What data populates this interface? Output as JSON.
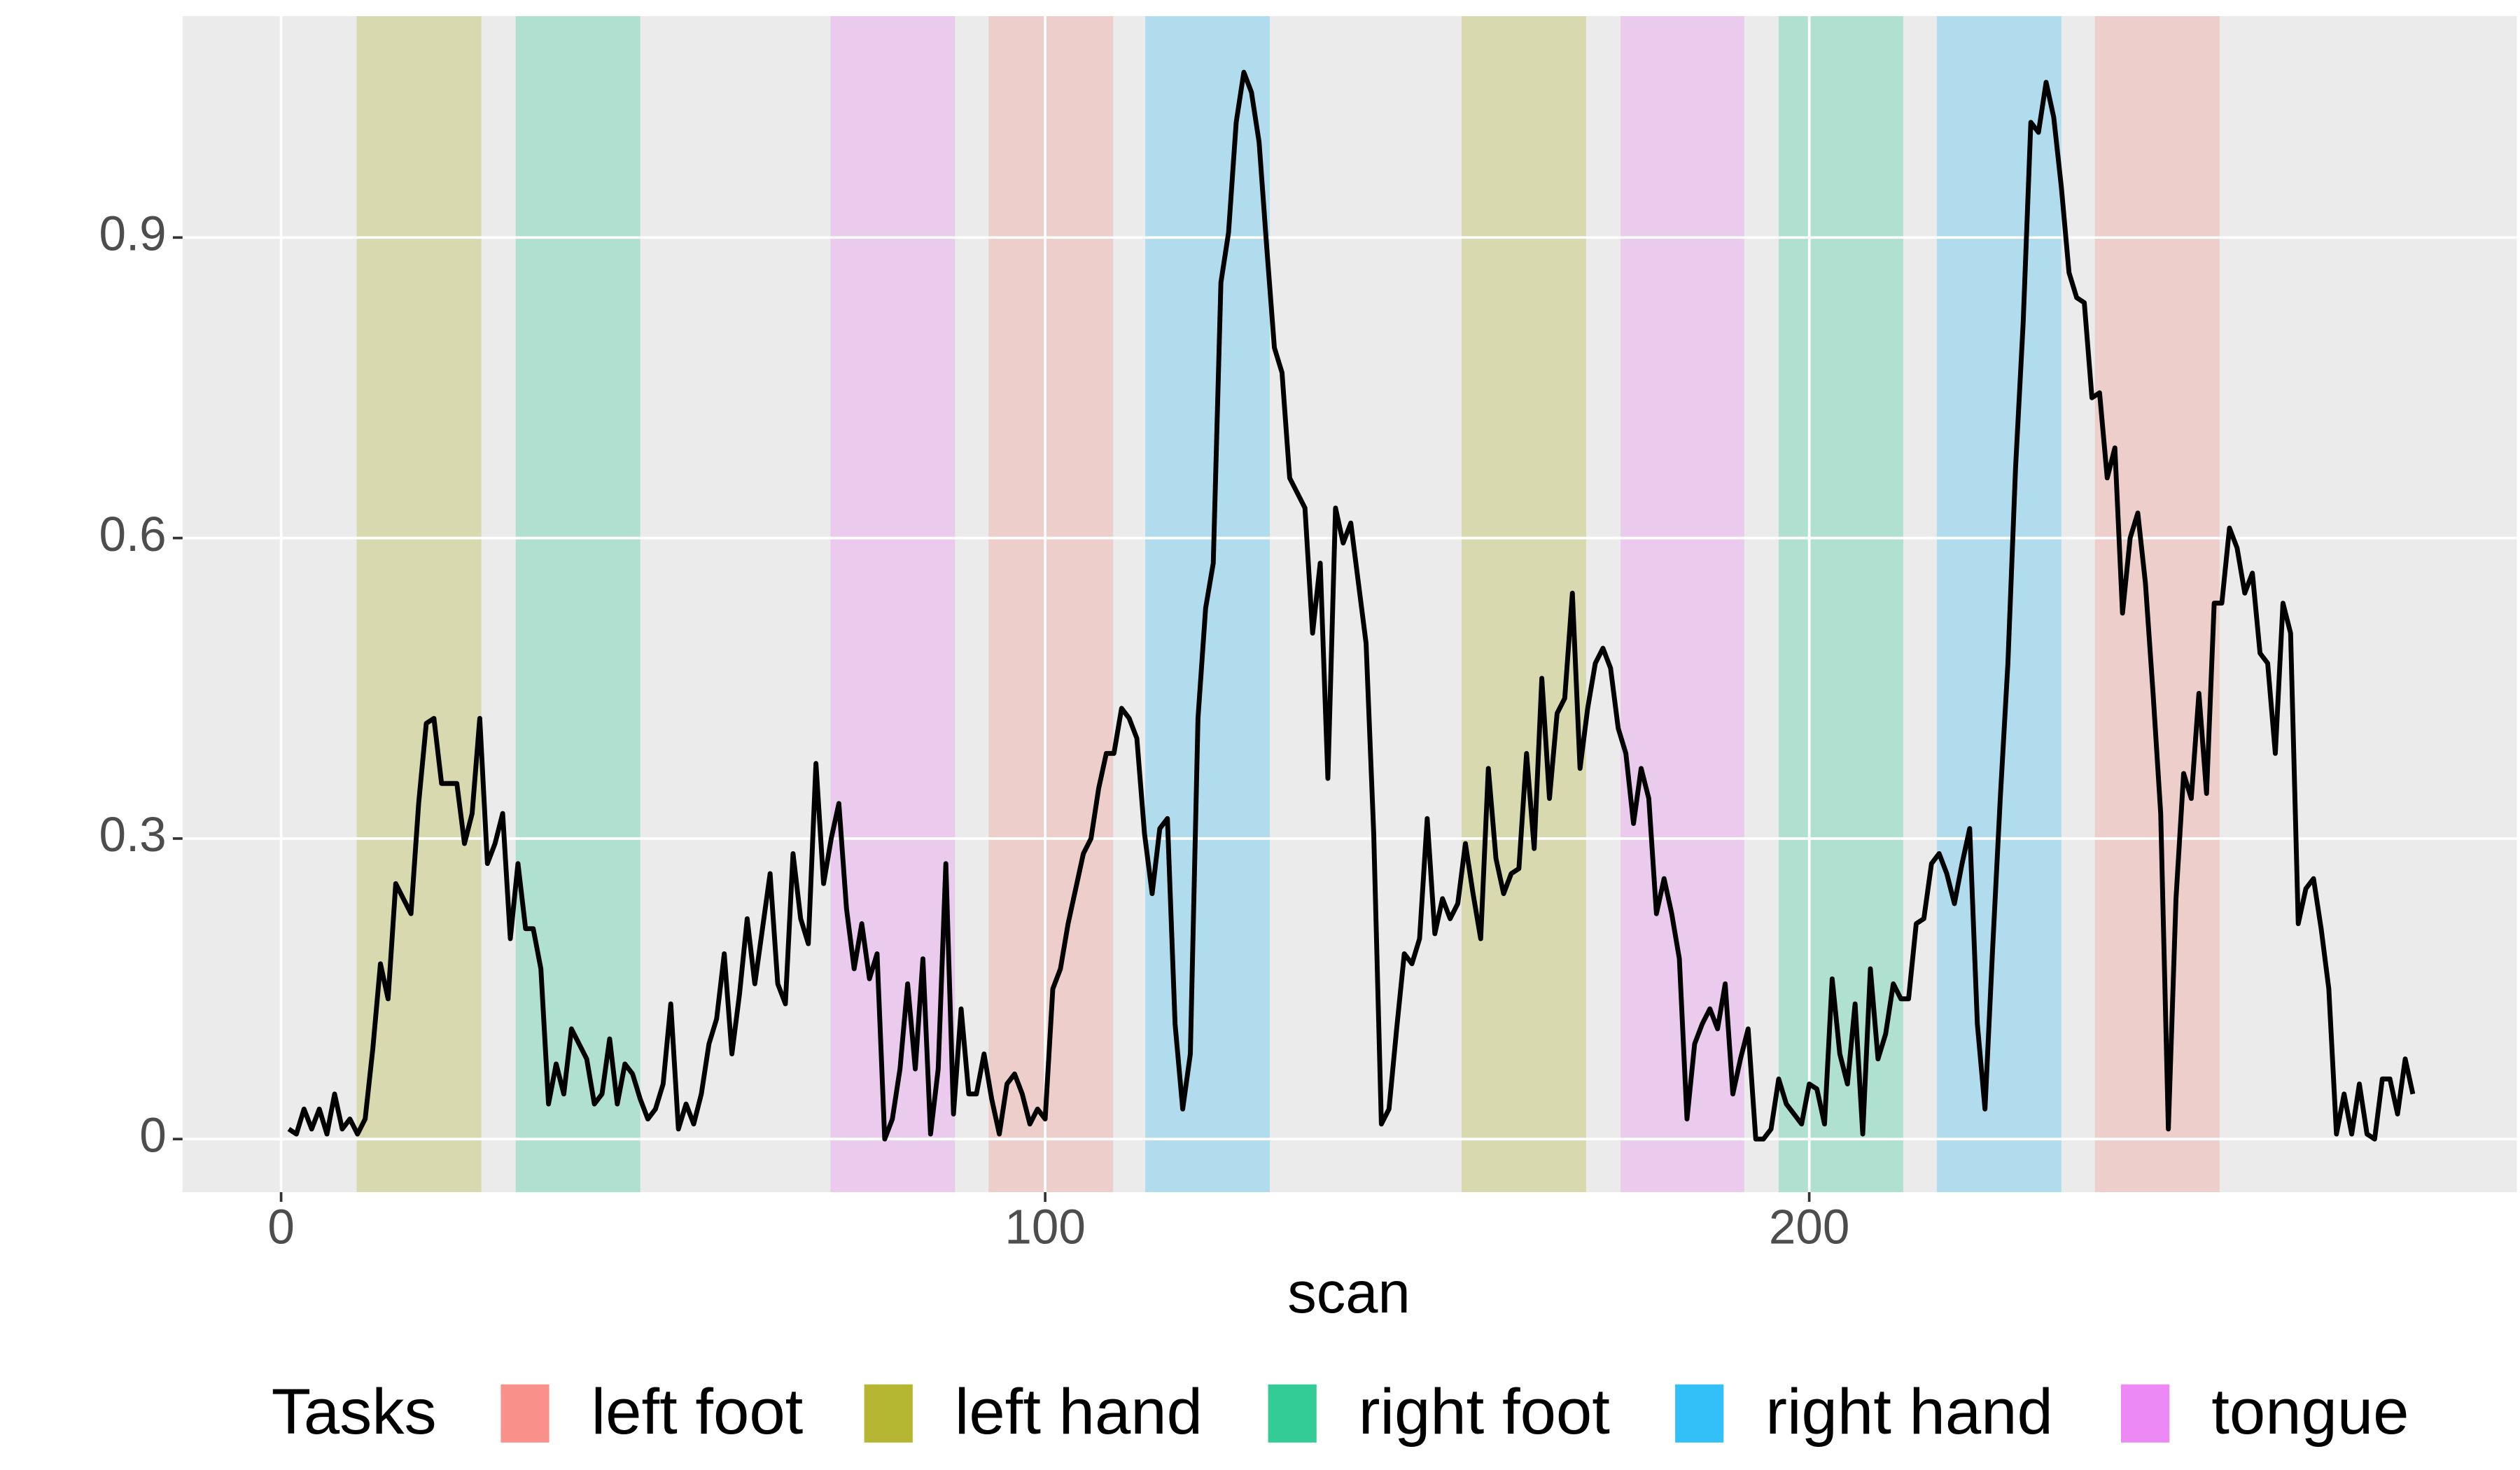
{
  "chart_data": {
    "type": "line",
    "x_label": "scan",
    "legend_title": "Tasks",
    "line_color": "#000000",
    "xlim": [
      -12.9,
      292.6
    ],
    "xticks": [
      0,
      100,
      200
    ],
    "ylim": [
      -0.053,
      1.121
    ],
    "yticks": [
      0.0,
      0.3,
      0.6,
      0.9
    ],
    "grid": true,
    "legend_position": "bottom",
    "tasks": [
      {
        "name": "left foot",
        "color": "#F8766D",
        "blocks": [
          [
            92.6,
            108.9
          ],
          [
            237.4,
            253.7
          ]
        ]
      },
      {
        "name": "left hand",
        "color": "#A3A500",
        "blocks": [
          [
            9.9,
            26.2
          ],
          [
            154.5,
            170.8
          ]
        ]
      },
      {
        "name": "right foot",
        "color": "#00BF7D",
        "blocks": [
          [
            30.7,
            47.0
          ],
          [
            196.0,
            212.3
          ]
        ]
      },
      {
        "name": "right hand",
        "color": "#00B0F6",
        "blocks": [
          [
            113.1,
            129.4
          ],
          [
            216.7,
            233.0
          ]
        ]
      },
      {
        "name": "tongue",
        "color": "#E76BF3",
        "blocks": [
          [
            71.9,
            88.2
          ],
          [
            175.3,
            191.5
          ]
        ]
      }
    ],
    "x": [
      1,
      2,
      3,
      4,
      5,
      6,
      7,
      8,
      9,
      10,
      11,
      12,
      13,
      14,
      15,
      16,
      17,
      18,
      19,
      20,
      21,
      22,
      23,
      24,
      25,
      26,
      27,
      28,
      29,
      30,
      31,
      32,
      33,
      34,
      35,
      36,
      37,
      38,
      39,
      40,
      41,
      42,
      43,
      44,
      45,
      46,
      47,
      48,
      49,
      50,
      51,
      52,
      53,
      54,
      55,
      56,
      57,
      58,
      59,
      60,
      61,
      62,
      63,
      64,
      65,
      66,
      67,
      68,
      69,
      70,
      71,
      72,
      73,
      74,
      75,
      76,
      77,
      78,
      79,
      80,
      81,
      82,
      83,
      84,
      85,
      86,
      87,
      88,
      89,
      90,
      91,
      92,
      93,
      94,
      95,
      96,
      97,
      98,
      99,
      100,
      101,
      102,
      103,
      104,
      105,
      106,
      107,
      108,
      109,
      110,
      111,
      112,
      113,
      114,
      115,
      116,
      117,
      118,
      119,
      120,
      121,
      122,
      123,
      124,
      125,
      126,
      127,
      128,
      129,
      130,
      131,
      132,
      133,
      134,
      135,
      136,
      137,
      138,
      139,
      140,
      141,
      142,
      143,
      144,
      145,
      146,
      147,
      148,
      149,
      150,
      151,
      152,
      153,
      154,
      155,
      156,
      157,
      158,
      159,
      160,
      161,
      162,
      163,
      164,
      165,
      166,
      167,
      168,
      169,
      170,
      171,
      172,
      173,
      174,
      175,
      176,
      177,
      178,
      179,
      180,
      181,
      182,
      183,
      184,
      185,
      186,
      187,
      188,
      189,
      190,
      191,
      192,
      193,
      194,
      195,
      196,
      197,
      198,
      199,
      200,
      201,
      202,
      203,
      204,
      205,
      206,
      207,
      208,
      209,
      210,
      211,
      212,
      213,
      214,
      215,
      216,
      217,
      218,
      219,
      220,
      221,
      222,
      223,
      224,
      225,
      226,
      227,
      228,
      229,
      230,
      231,
      232,
      233,
      234,
      235,
      236,
      237,
      238,
      239,
      240,
      241,
      242,
      243,
      244,
      245,
      246,
      247,
      248,
      249,
      250,
      251,
      252,
      253,
      254,
      255,
      256,
      257,
      258,
      259,
      260,
      261,
      262,
      263,
      264,
      265,
      266,
      267,
      268,
      269,
      270,
      271,
      272,
      273,
      274,
      275,
      276,
      277,
      278,
      279
    ],
    "values": [
      0.01,
      0.005,
      0.03,
      0.01,
      0.03,
      0.005,
      0.045,
      0.01,
      0.02,
      0.005,
      0.02,
      0.09,
      0.175,
      0.14,
      0.255,
      0.24,
      0.225,
      0.335,
      0.415,
      0.42,
      0.355,
      0.355,
      0.355,
      0.295,
      0.325,
      0.42,
      0.275,
      0.295,
      0.325,
      0.2,
      0.275,
      0.21,
      0.21,
      0.17,
      0.035,
      0.075,
      0.045,
      0.11,
      0.095,
      0.08,
      0.035,
      0.045,
      0.1,
      0.035,
      0.075,
      0.065,
      0.04,
      0.02,
      0.03,
      0.055,
      0.135,
      0.01,
      0.035,
      0.015,
      0.045,
      0.095,
      0.12,
      0.185,
      0.085,
      0.145,
      0.22,
      0.155,
      0.21,
      0.265,
      0.155,
      0.135,
      0.285,
      0.22,
      0.195,
      0.375,
      0.255,
      0.3,
      0.335,
      0.23,
      0.17,
      0.215,
      0.16,
      0.185,
      0.0,
      0.02,
      0.07,
      0.155,
      0.07,
      0.18,
      0.005,
      0.07,
      0.275,
      0.025,
      0.13,
      0.045,
      0.045,
      0.085,
      0.04,
      0.005,
      0.055,
      0.065,
      0.045,
      0.015,
      0.03,
      0.02,
      0.15,
      0.17,
      0.215,
      0.25,
      0.285,
      0.3,
      0.35,
      0.385,
      0.385,
      0.43,
      0.42,
      0.4,
      0.305,
      0.245,
      0.31,
      0.32,
      0.115,
      0.03,
      0.085,
      0.42,
      0.53,
      0.575,
      0.855,
      0.905,
      1.015,
      1.065,
      1.045,
      0.995,
      0.89,
      0.79,
      0.765,
      0.66,
      0.645,
      0.63,
      0.505,
      0.575,
      0.36,
      0.63,
      0.595,
      0.615,
      0.555,
      0.495,
      0.305,
      0.015,
      0.03,
      0.11,
      0.185,
      0.175,
      0.2,
      0.32,
      0.205,
      0.24,
      0.22,
      0.235,
      0.295,
      0.245,
      0.2,
      0.37,
      0.28,
      0.245,
      0.265,
      0.27,
      0.385,
      0.29,
      0.46,
      0.34,
      0.425,
      0.44,
      0.545,
      0.37,
      0.43,
      0.475,
      0.49,
      0.47,
      0.41,
      0.385,
      0.315,
      0.37,
      0.34,
      0.225,
      0.26,
      0.225,
      0.18,
      0.02,
      0.095,
      0.115,
      0.13,
      0.11,
      0.155,
      0.045,
      0.08,
      0.11,
      0.0,
      0.0,
      0.01,
      0.06,
      0.035,
      0.025,
      0.015,
      0.055,
      0.05,
      0.015,
      0.16,
      0.085,
      0.055,
      0.135,
      0.005,
      0.17,
      0.08,
      0.105,
      0.155,
      0.14,
      0.14,
      0.215,
      0.22,
      0.275,
      0.285,
      0.265,
      0.235,
      0.275,
      0.31,
      0.115,
      0.03,
      0.19,
      0.34,
      0.475,
      0.67,
      0.815,
      1.015,
      1.005,
      1.055,
      1.02,
      0.95,
      0.865,
      0.84,
      0.835,
      0.74,
      0.745,
      0.66,
      0.69,
      0.525,
      0.6,
      0.625,
      0.555,
      0.445,
      0.325,
      0.01,
      0.24,
      0.365,
      0.34,
      0.445,
      0.345,
      0.535,
      0.535,
      0.61,
      0.59,
      0.545,
      0.565,
      0.485,
      0.475,
      0.385,
      0.535,
      0.505,
      0.215,
      0.25,
      0.26,
      0.21,
      0.15,
      0.005,
      0.045,
      0.005,
      0.055,
      0.005,
      0.0,
      0.06,
      0.06,
      0.025,
      0.08,
      0.045
    ]
  }
}
